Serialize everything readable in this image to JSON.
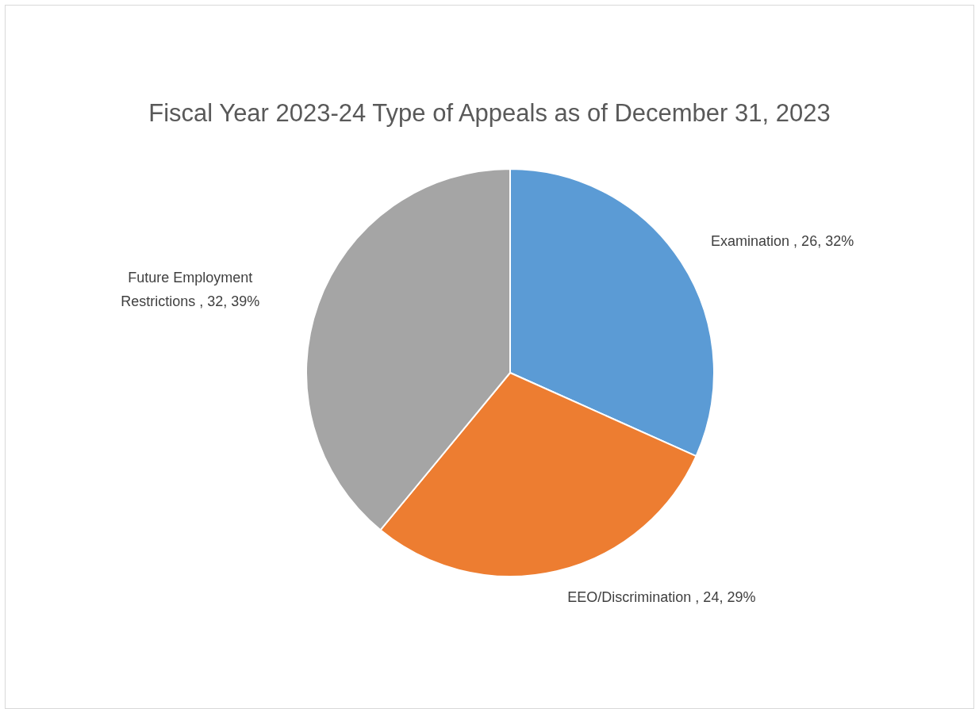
{
  "chart_data": {
    "type": "pie",
    "title": "Fiscal Year 2023-24 Type of Appeals as of December 31, 2023",
    "categories": [
      "Examination",
      "EEO/Discrimination",
      "Future Employment Restrictions"
    ],
    "values": [
      26,
      24,
      32
    ],
    "colors": [
      "#5b9bd5",
      "#ed7d31",
      "#a5a5a5"
    ],
    "value_labels": [
      "26, 32%",
      "24, 29%",
      "32, 39%"
    ]
  }
}
